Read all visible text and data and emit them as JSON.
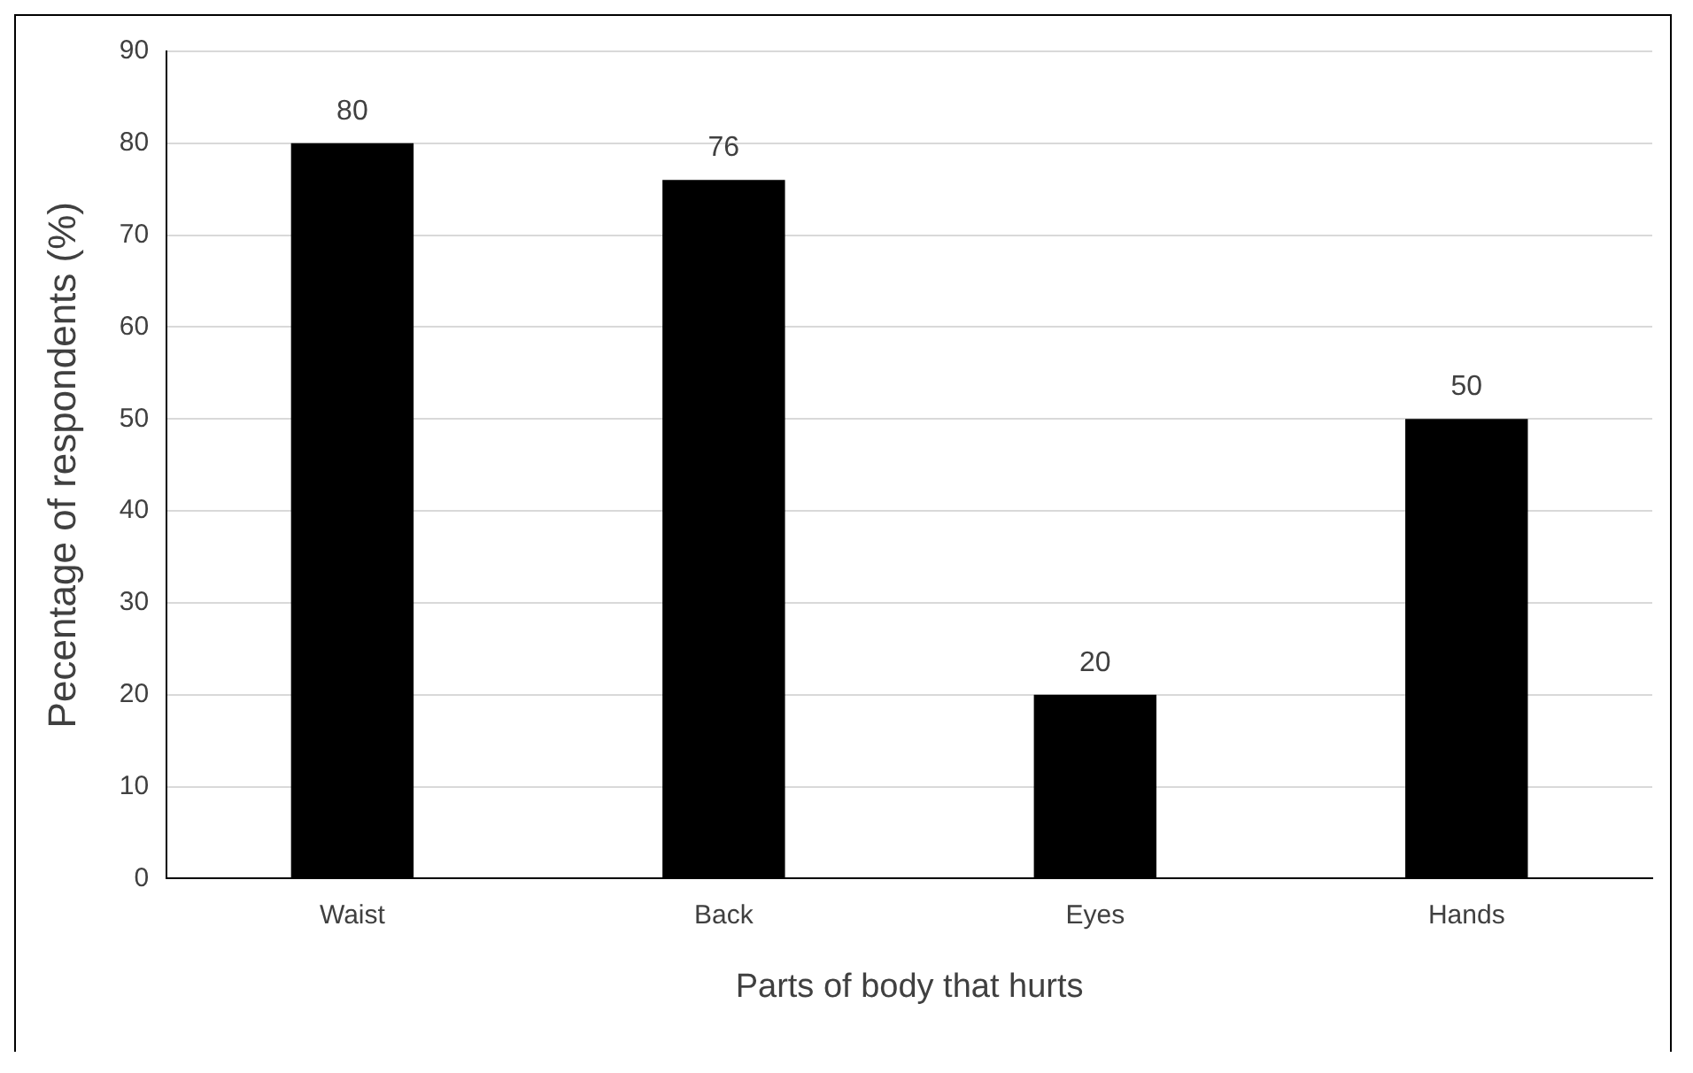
{
  "chart_data": {
    "type": "bar",
    "xlabel": "Parts of body that hurts",
    "ylabel": "Pecentage of respondents (%)",
    "categories": [
      "Waist",
      "Back",
      "Eyes",
      "Hands"
    ],
    "values": [
      80,
      76,
      20,
      50
    ],
    "color": "#000000",
    "ylim": [
      0,
      90
    ],
    "yticks": [
      0,
      10,
      20,
      30,
      40,
      50,
      60,
      70,
      80,
      90
    ],
    "grid": "y",
    "data_labels": true,
    "legend": false
  }
}
